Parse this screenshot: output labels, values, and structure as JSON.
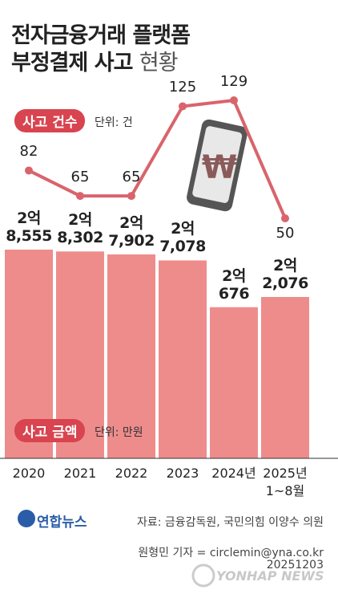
{
  "header": {
    "title_line1": "전자금융거래 플랫폼",
    "title_line2": "부정결제 사고",
    "title_suffix": "현황"
  },
  "chart_data": {
    "type": "bar",
    "categories": [
      "2020",
      "2021",
      "2022",
      "2023",
      "2024년",
      "2025년\n1~8월"
    ],
    "series": [
      {
        "name": "사고 금액",
        "unit": "단위: 만원",
        "type": "bar",
        "color": "#ee8c8c",
        "values": [
          28555,
          28302,
          27902,
          27078,
          20676,
          22076
        ],
        "value_labels": [
          "2억\n8,555",
          "2억\n8,302",
          "2억\n7,902",
          "2억\n7,078",
          "2억\n676",
          "2억\n2,076"
        ]
      },
      {
        "name": "사고 건수",
        "unit": "단위: 건",
        "type": "line",
        "color": "#d9646c",
        "values": [
          82,
          65,
          65,
          125,
          129,
          50
        ]
      }
    ]
  },
  "footer": {
    "logo": "연합뉴스",
    "source": "자료: 금융감독원, 국민의힘 이양수 의원",
    "byline": "원형민 기자 = circlemin@yna.co.kr",
    "date": "20251203",
    "watermark": "YONHAP NEWS"
  }
}
